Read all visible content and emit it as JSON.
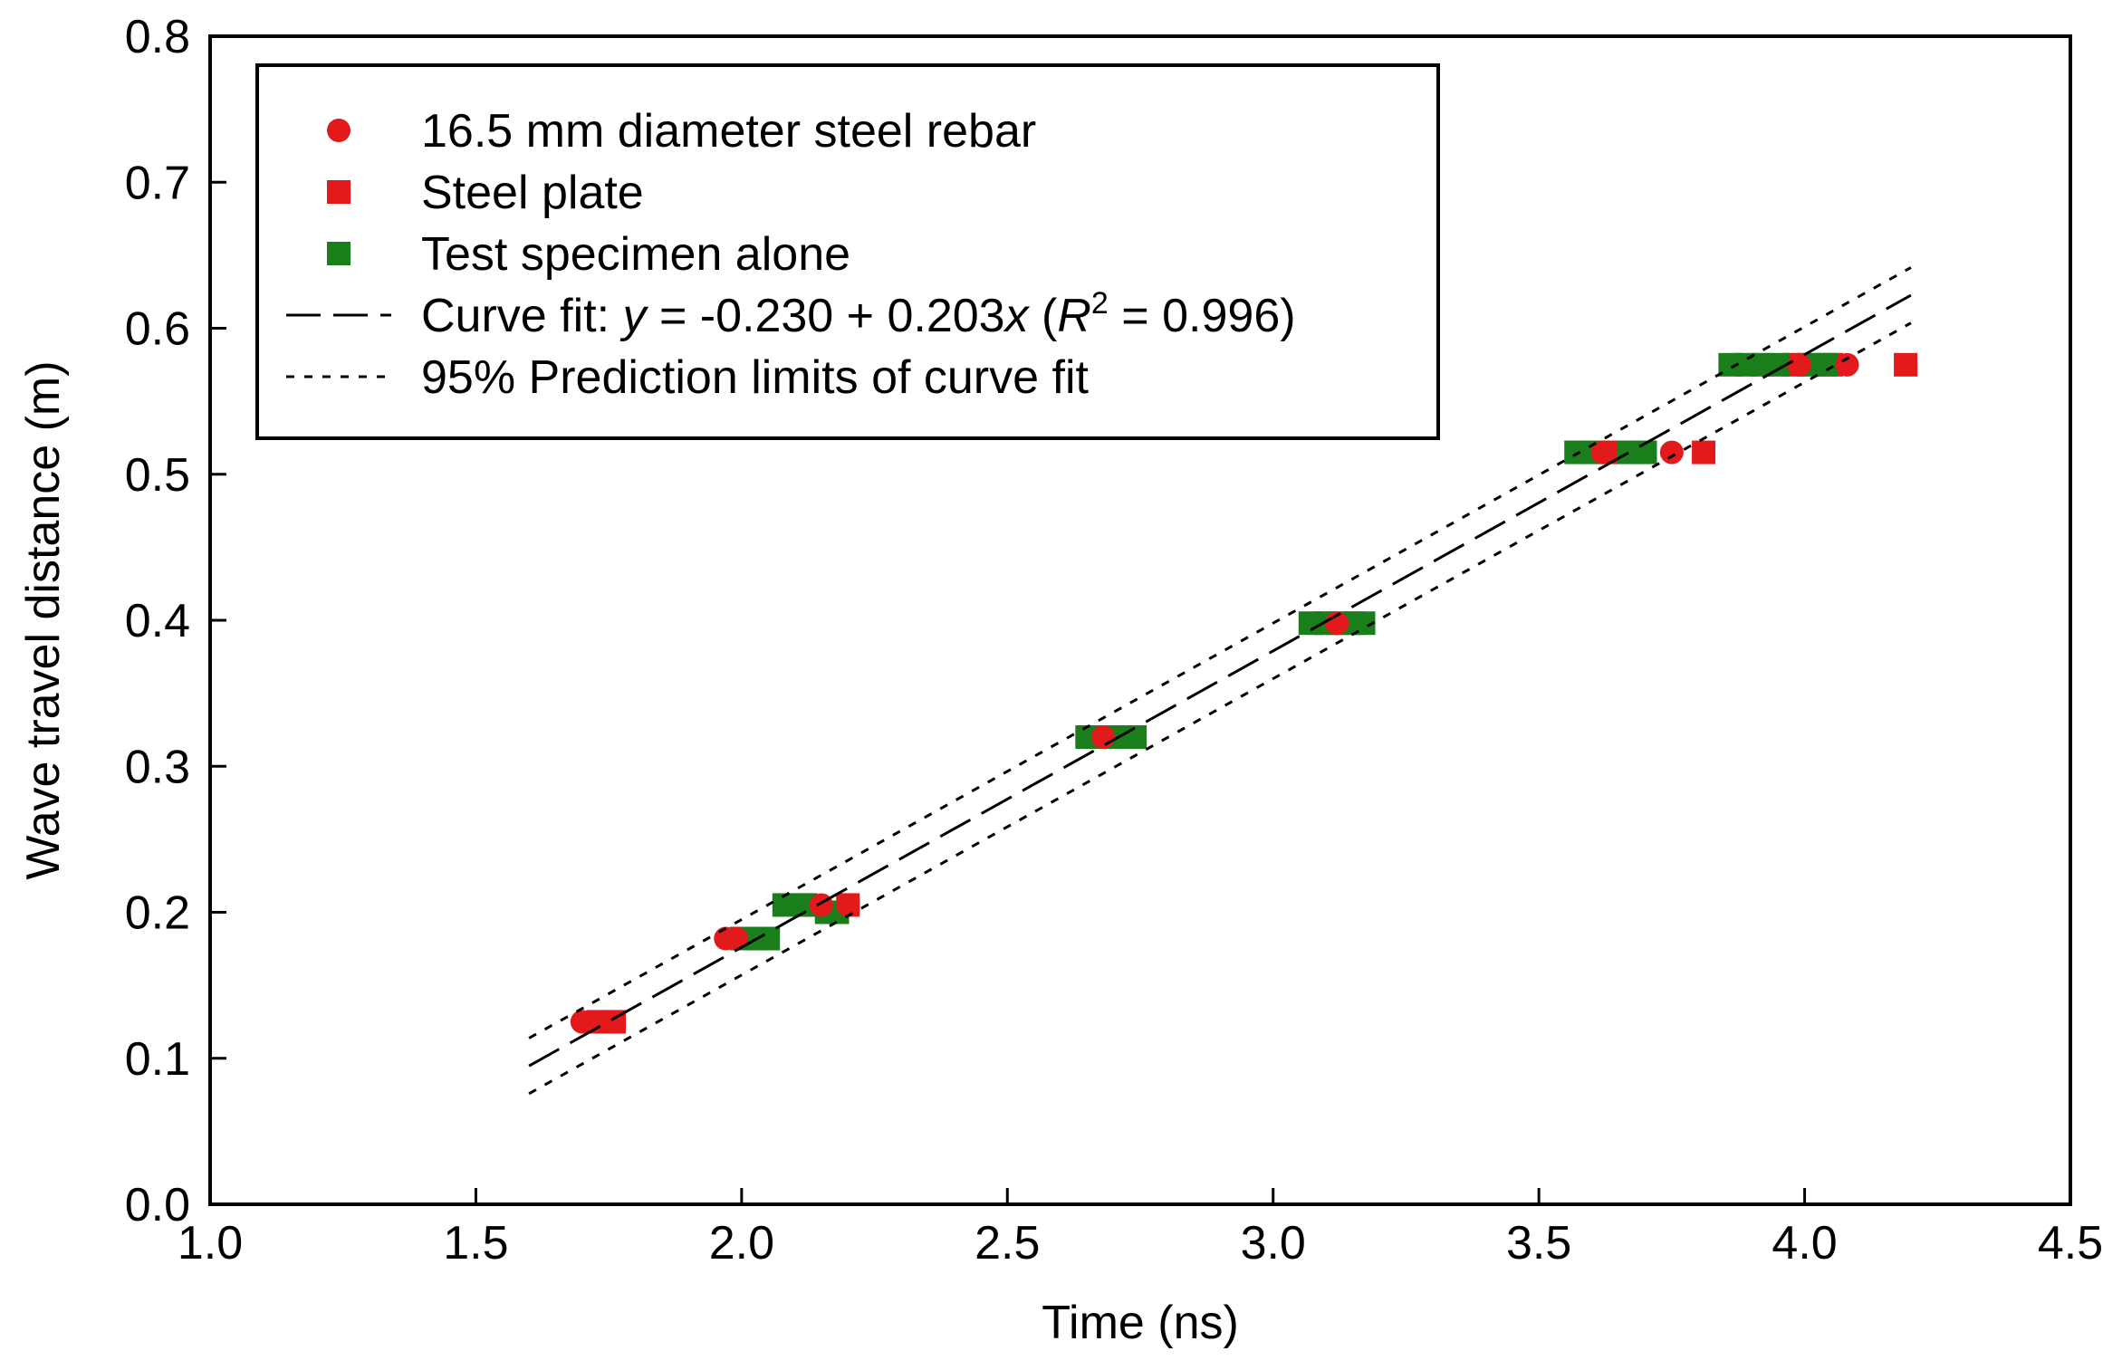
{
  "chart_data": {
    "type": "scatter",
    "xlabel": "Time (ns)",
    "ylabel": "Wave travel distance (m)",
    "xlim": [
      1.0,
      4.5
    ],
    "ylim": [
      0.0,
      0.8
    ],
    "xticks": [
      "1.0",
      "1.5",
      "2.0",
      "2.5",
      "3.0",
      "3.5",
      "4.0",
      "4.5"
    ],
    "yticks": [
      "0.0",
      "0.1",
      "0.2",
      "0.3",
      "0.4",
      "0.5",
      "0.6",
      "0.7",
      "0.8"
    ],
    "grid": false,
    "legend_position": "top-left",
    "colors": {
      "red": "#e31a1c",
      "green": "#1a7f1a",
      "black": "#000000"
    },
    "series": [
      {
        "name": "16.5 mm diameter steel rebar",
        "marker": "circle",
        "color": "#e31a1c",
        "points": [
          [
            1.7,
            0.125
          ],
          [
            1.72,
            0.125
          ],
          [
            1.97,
            0.182
          ],
          [
            1.99,
            0.182
          ],
          [
            2.15,
            0.205
          ],
          [
            2.2,
            0.205
          ],
          [
            2.68,
            0.32
          ],
          [
            3.12,
            0.398
          ],
          [
            3.62,
            0.515
          ],
          [
            3.75,
            0.515
          ],
          [
            3.99,
            0.575
          ],
          [
            4.08,
            0.575
          ]
        ]
      },
      {
        "name": "Steel plate",
        "marker": "square",
        "color": "#e31a1c",
        "points": [
          [
            1.73,
            0.125
          ],
          [
            1.76,
            0.125
          ],
          [
            2.12,
            0.205
          ],
          [
            2.2,
            0.205
          ],
          [
            3.12,
            0.398
          ],
          [
            3.63,
            0.515
          ],
          [
            3.81,
            0.515
          ],
          [
            3.98,
            0.575
          ],
          [
            4.05,
            0.575
          ],
          [
            4.19,
            0.575
          ]
        ]
      },
      {
        "name": "Test specimen alone",
        "marker": "square",
        "color": "#1a7f1a",
        "points": [
          [
            2.0,
            0.182
          ],
          [
            2.03,
            0.182
          ],
          [
            2.05,
            0.182
          ],
          [
            2.08,
            0.205
          ],
          [
            2.12,
            0.205
          ],
          [
            2.16,
            0.2
          ],
          [
            2.18,
            0.2
          ],
          [
            2.65,
            0.32
          ],
          [
            2.68,
            0.32
          ],
          [
            2.71,
            0.32
          ],
          [
            2.74,
            0.32
          ],
          [
            3.07,
            0.398
          ],
          [
            3.1,
            0.398
          ],
          [
            3.15,
            0.398
          ],
          [
            3.17,
            0.398
          ],
          [
            3.57,
            0.515
          ],
          [
            3.6,
            0.515
          ],
          [
            3.67,
            0.515
          ],
          [
            3.7,
            0.515
          ],
          [
            3.86,
            0.575
          ],
          [
            3.89,
            0.575
          ],
          [
            3.92,
            0.575
          ],
          [
            3.95,
            0.575
          ],
          [
            4.01,
            0.575
          ],
          [
            4.04,
            0.575
          ]
        ]
      }
    ],
    "fit": {
      "name": "Curve fit",
      "intercept": -0.23,
      "slope": 0.203,
      "r2": 0.996,
      "x_range": [
        1.6,
        4.2
      ],
      "prediction_offset": 0.019
    },
    "legend": [
      {
        "key": "rebar",
        "marker": "circle",
        "color": "#e31a1c",
        "text": "16.5 mm diameter steel rebar"
      },
      {
        "key": "plate",
        "marker": "square",
        "color": "#e31a1c",
        "text": "Steel plate"
      },
      {
        "key": "specimen",
        "marker": "square",
        "color": "#1a7f1a",
        "text": "Test specimen alone"
      },
      {
        "key": "fit",
        "marker": "longdash",
        "color": "#000000",
        "text_parts": [
          "Curve fit: ",
          "y",
          " = -0.230 + 0.203",
          "x",
          " (",
          "R",
          "2",
          " = 0.996)"
        ]
      },
      {
        "key": "limits",
        "marker": "dotted",
        "color": "#000000",
        "text": "95% Prediction limits of curve fit"
      }
    ]
  }
}
